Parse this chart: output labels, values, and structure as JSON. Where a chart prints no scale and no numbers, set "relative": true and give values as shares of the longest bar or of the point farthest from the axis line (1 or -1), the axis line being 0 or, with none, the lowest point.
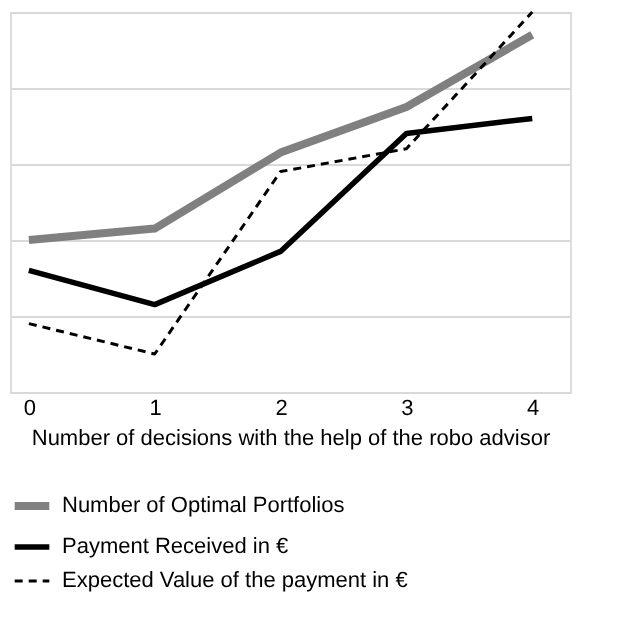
{
  "chart_data": {
    "type": "line",
    "relative": true,
    "xlabel": "Number of decisions with the help of the robo advisor",
    "categories": [
      "0",
      "1",
      "2",
      "3",
      "4"
    ],
    "grid": "y",
    "legend": "bottom",
    "marker": "none",
    "series": [
      {
        "name": "Number of Optimal Portfolios",
        "color": "#808080",
        "line_style": "solid",
        "values": [
          0.4,
          0.43,
          0.63,
          0.75,
          0.94
        ]
      },
      {
        "name": "Payment Received in €",
        "color": "#000000",
        "line_style": "solid",
        "values": [
          0.32,
          0.23,
          0.37,
          0.68,
          0.72
        ]
      },
      {
        "name": "Expected Value of the payment in €",
        "color": "#000000",
        "line_style": "dashed",
        "values": [
          0.18,
          0.1,
          0.58,
          0.64,
          1.0
        ]
      }
    ]
  }
}
